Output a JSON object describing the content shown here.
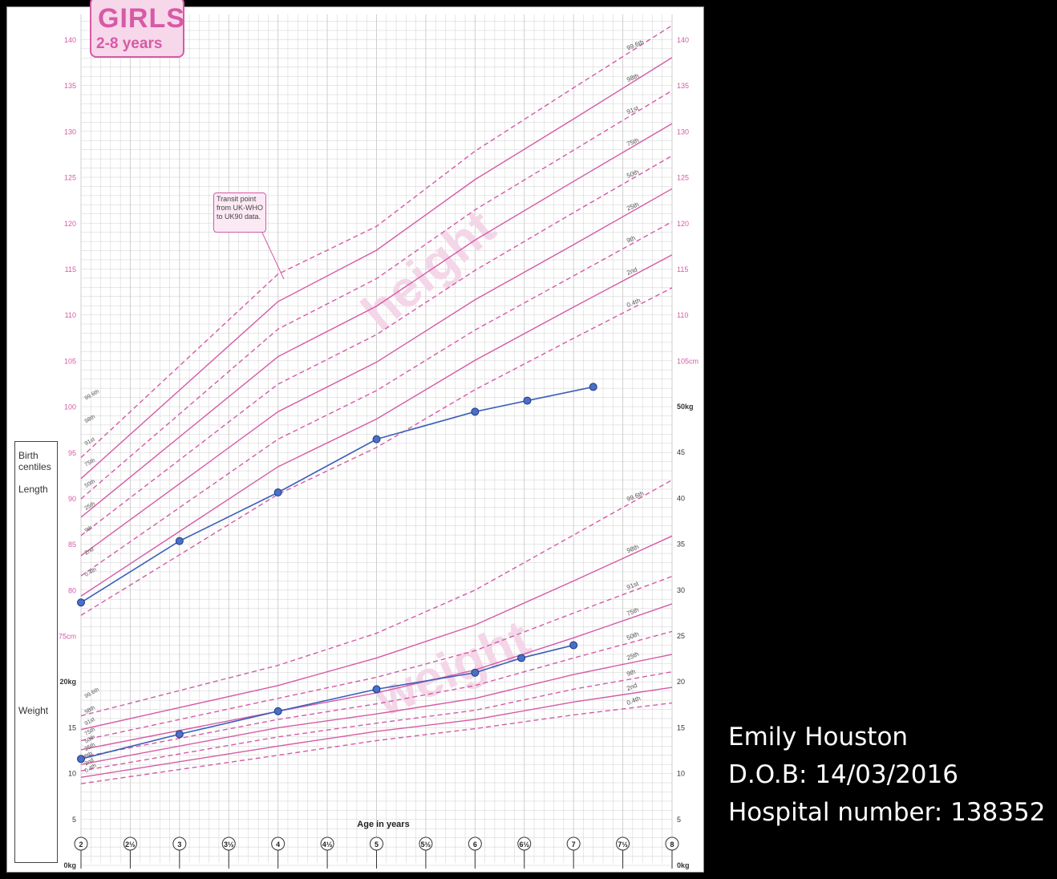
{
  "title": {
    "main": "GIRLS",
    "sub": "2-8 years"
  },
  "patient": {
    "name": "Emily Houston",
    "dob": "D.O.B: 14/03/2016",
    "hospital": "Hospital number: 138352"
  },
  "annotation": {
    "transit": "Transit point from UK-WHO to UK90 data."
  },
  "watermarks": {
    "height": "height",
    "weight": "weight"
  },
  "birth_panel": {
    "title": "Birth centiles",
    "length": "Length",
    "weight": "Weight"
  },
  "colors": {
    "centile": "#d65aa6",
    "plot": "#3b5fb8",
    "grid": "#cfcfcf",
    "background": "#000000"
  },
  "chart_data": [
    {
      "type": "line",
      "name": "height",
      "xlabel": "Age in years",
      "x_ticks": [
        "2",
        "2½",
        "3",
        "3½",
        "4",
        "4½",
        "5",
        "5½",
        "6",
        "6½",
        "7",
        "7½",
        "8"
      ],
      "xlim": [
        2,
        8
      ],
      "ylim": [
        70,
        142
      ],
      "y_ticks_left": [
        "140",
        "135",
        "130",
        "125",
        "120",
        "115",
        "110",
        "105",
        "100",
        "95",
        "90",
        "85",
        "80",
        "75cm"
      ],
      "y_ticks_right": [
        "140",
        "135",
        "130",
        "125",
        "120",
        "115",
        "110",
        "105cm"
      ],
      "centiles": [
        {
          "label": "99.6th",
          "dashed": true,
          "x": [
            2,
            4,
            5,
            6,
            7,
            8
          ],
          "y": [
            94.5,
            114.5,
            119.7,
            127.9,
            134.8,
            141.6
          ]
        },
        {
          "label": "98th",
          "dashed": false,
          "x": [
            2,
            4,
            5,
            6,
            7,
            8
          ],
          "y": [
            92.2,
            111.5,
            117.1,
            124.8,
            131.4,
            138.1
          ]
        },
        {
          "label": "91st",
          "dashed": true,
          "x": [
            2,
            4,
            5,
            6,
            7,
            8
          ],
          "y": [
            90.0,
            108.5,
            114.0,
            121.5,
            128.0,
            134.5
          ]
        },
        {
          "label": "75th",
          "dashed": false,
          "x": [
            2,
            4,
            5,
            6,
            7,
            8
          ],
          "y": [
            88.0,
            105.5,
            111.0,
            118.2,
            124.6,
            130.9
          ]
        },
        {
          "label": "50th",
          "dashed": true,
          "x": [
            2,
            4,
            5,
            6,
            7,
            8
          ],
          "y": [
            86.0,
            102.5,
            107.9,
            114.9,
            121.2,
            127.4
          ]
        },
        {
          "label": "25th",
          "dashed": false,
          "x": [
            2,
            4,
            5,
            6,
            7,
            8
          ],
          "y": [
            83.8,
            99.5,
            104.9,
            111.7,
            117.7,
            123.8
          ]
        },
        {
          "label": "9th",
          "dashed": true,
          "x": [
            2,
            4,
            5,
            6,
            7,
            8
          ],
          "y": [
            81.6,
            96.5,
            101.8,
            108.4,
            114.3,
            120.2
          ]
        },
        {
          "label": "2nd",
          "dashed": false,
          "x": [
            2,
            4,
            5,
            6,
            7,
            8
          ],
          "y": [
            79.4,
            93.5,
            98.7,
            105.1,
            110.9,
            116.6
          ]
        },
        {
          "label": "0.4th",
          "dashed": true,
          "x": [
            2,
            4,
            5,
            6,
            7,
            8
          ],
          "y": [
            77.3,
            90.5,
            95.6,
            101.9,
            107.5,
            113.0
          ]
        }
      ],
      "series": [
        {
          "x": [
            2.0,
            3.0,
            4.0,
            5.0,
            6.0,
            6.53,
            7.2
          ],
          "y": [
            78.7,
            85.4,
            90.7,
            96.5,
            99.5,
            100.7,
            102.2
          ]
        }
      ]
    },
    {
      "type": "line",
      "name": "weight",
      "ylim": [
        0,
        52
      ],
      "y_ticks_left": [
        "20kg",
        "15",
        "10",
        "5",
        "0kg"
      ],
      "y_ticks_right": [
        "50kg",
        "45",
        "40",
        "35",
        "30",
        "25",
        "20",
        "15",
        "10",
        "5",
        "0kg"
      ],
      "centiles": [
        {
          "label": "99.6th",
          "dashed": true,
          "x": [
            2,
            4,
            5,
            6,
            7,
            8
          ],
          "y": [
            16.3,
            21.8,
            25.3,
            30.0,
            36.0,
            42.0
          ]
        },
        {
          "label": "98th",
          "dashed": false,
          "x": [
            2,
            4,
            5,
            6,
            7,
            8
          ],
          "y": [
            14.8,
            19.6,
            22.6,
            26.2,
            31.0,
            35.9
          ]
        },
        {
          "label": "91st",
          "dashed": true,
          "x": [
            2,
            4,
            5,
            6,
            7,
            8
          ],
          "y": [
            13.6,
            18.2,
            20.5,
            23.4,
            27.5,
            31.5
          ]
        },
        {
          "label": "75th",
          "dashed": false,
          "x": [
            2,
            4,
            5,
            6,
            7,
            8
          ],
          "y": [
            12.6,
            16.8,
            18.8,
            21.3,
            24.8,
            28.5
          ]
        },
        {
          "label": "50th",
          "dashed": true,
          "x": [
            2,
            4,
            5,
            6,
            7,
            8
          ],
          "y": [
            11.8,
            15.9,
            17.6,
            19.6,
            22.6,
            25.5
          ]
        },
        {
          "label": "25th",
          "dashed": false,
          "x": [
            2,
            4,
            5,
            6,
            7,
            8
          ],
          "y": [
            11.0,
            15.0,
            16.5,
            18.2,
            20.8,
            23.0
          ]
        },
        {
          "label": "9th",
          "dashed": true,
          "x": [
            2,
            4,
            5,
            6,
            7,
            8
          ],
          "y": [
            10.3,
            14.0,
            15.5,
            16.9,
            19.2,
            21.1
          ]
        },
        {
          "label": "2nd",
          "dashed": false,
          "x": [
            2,
            4,
            5,
            6,
            7,
            8
          ],
          "y": [
            9.6,
            13.0,
            14.6,
            15.9,
            17.8,
            19.4
          ]
        },
        {
          "label": "0.4th",
          "dashed": true,
          "x": [
            2,
            4,
            5,
            6,
            7,
            8
          ],
          "y": [
            8.9,
            12.0,
            13.6,
            14.9,
            16.4,
            17.7
          ]
        }
      ],
      "series": [
        {
          "x": [
            2.0,
            3.0,
            4.0,
            5.0,
            6.0,
            6.47,
            7.0
          ],
          "y": [
            11.6,
            14.3,
            16.8,
            19.2,
            21.0,
            22.6,
            24.0
          ]
        }
      ]
    }
  ]
}
